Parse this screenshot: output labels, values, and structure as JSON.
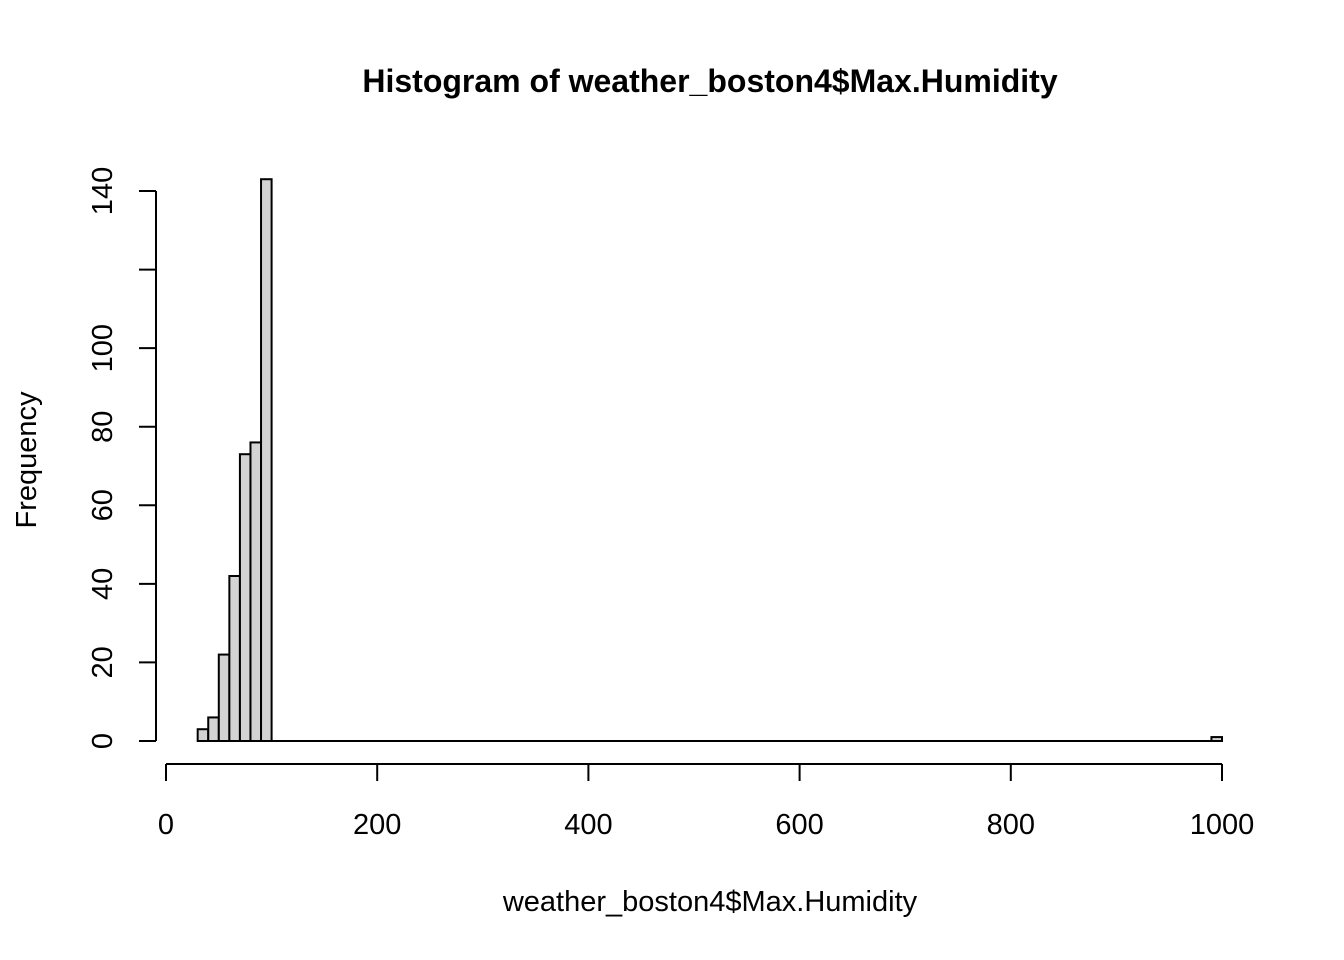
{
  "chart_data": {
    "type": "bar",
    "title": "Histogram of weather_boston4$Max.Humidity",
    "xlabel": "weather_boston4$Max.Humidity",
    "ylabel": "Frequency",
    "xlim": [
      0,
      1000
    ],
    "ylim": [
      0,
      140
    ],
    "bin_width": 10,
    "bins": [
      {
        "start": 30,
        "end": 40,
        "count": 3
      },
      {
        "start": 40,
        "end": 50,
        "count": 6
      },
      {
        "start": 50,
        "end": 60,
        "count": 22
      },
      {
        "start": 60,
        "end": 70,
        "count": 42
      },
      {
        "start": 70,
        "end": 80,
        "count": 73
      },
      {
        "start": 80,
        "end": 90,
        "count": 76
      },
      {
        "start": 90,
        "end": 100,
        "count": 143
      },
      {
        "start": 990,
        "end": 1000,
        "count": 1
      }
    ],
    "x_ticks": [
      0,
      200,
      400,
      600,
      800,
      1000
    ],
    "y_ticks": [
      0,
      20,
      40,
      60,
      80,
      100,
      120,
      140
    ],
    "y_tick_labels": [
      "0",
      "20",
      "40",
      "60",
      "80",
      "100",
      "",
      "140"
    ],
    "x_tick_labels": [
      "0",
      "200",
      "400",
      "600",
      "800",
      "1000"
    ],
    "grid": false,
    "legend": "none"
  }
}
